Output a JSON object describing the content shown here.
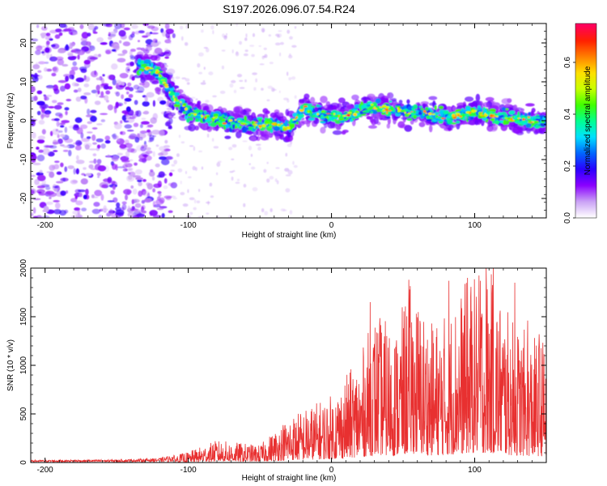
{
  "title": "S197.2026.096.07.54.R24",
  "chart_data": [
    {
      "type": "heatmap",
      "xlabel": "Height of straight line (km)",
      "ylabel": "Frequency (Hz)",
      "xlim": [
        -210,
        150
      ],
      "ylim": [
        -25,
        25
      ],
      "xticks": [
        -200,
        -100,
        0,
        100
      ],
      "yticks": [
        20,
        10,
        0,
        -10,
        -20
      ],
      "colorbar": {
        "label": "Normalized spectral amplitude",
        "range": [
          0,
          0.75
        ],
        "ticks": [
          "0.0",
          "0.2",
          "0.4",
          "0.6"
        ],
        "tick_values": [
          0,
          0.2,
          0.4,
          0.6
        ],
        "colors": [
          "#ffffff",
          "#c9a0f5",
          "#8a00ff",
          "#2a00ff",
          "#0066ff",
          "#00e0ff",
          "#00ff90",
          "#40ff00",
          "#c8ff00",
          "#ffe000",
          "#ff8000",
          "#ff2000",
          "#ff0060"
        ]
      },
      "ridge_frequency_hz": [
        {
          "x": -130,
          "y": 14
        },
        {
          "x": -120,
          "y": 12
        },
        {
          "x": -110,
          "y": 6
        },
        {
          "x": -100,
          "y": 2
        },
        {
          "x": -80,
          "y": 0
        },
        {
          "x": -60,
          "y": -1
        },
        {
          "x": -40,
          "y": -1
        },
        {
          "x": -30,
          "y": -2
        },
        {
          "x": -20,
          "y": 3
        },
        {
          "x": 0,
          "y": 1
        },
        {
          "x": 10,
          "y": 1
        },
        {
          "x": 20,
          "y": 3
        },
        {
          "x": 40,
          "y": 3
        },
        {
          "x": 60,
          "y": 2
        },
        {
          "x": 80,
          "y": 1
        },
        {
          "x": 100,
          "y": 2
        },
        {
          "x": 120,
          "y": 1
        },
        {
          "x": 140,
          "y": 0
        }
      ]
    },
    {
      "type": "line",
      "xlabel": "Height of straight line (km)",
      "ylabel": "SNR (10 * v/v)",
      "xlim": [
        -210,
        150
      ],
      "ylim": [
        0,
        2000
      ],
      "xticks": [
        -200,
        -100,
        0,
        100
      ],
      "yticks": [
        0,
        500,
        1000,
        1500,
        2000
      ],
      "color": "#e83030",
      "envelope": [
        {
          "x": -210,
          "y": 20
        },
        {
          "x": -150,
          "y": 25
        },
        {
          "x": -120,
          "y": 40
        },
        {
          "x": -100,
          "y": 110
        },
        {
          "x": -80,
          "y": 230
        },
        {
          "x": -50,
          "y": 180
        },
        {
          "x": -30,
          "y": 480
        },
        {
          "x": -20,
          "y": 550
        },
        {
          "x": 0,
          "y": 700
        },
        {
          "x": 20,
          "y": 1100
        },
        {
          "x": 30,
          "y": 1550
        },
        {
          "x": 45,
          "y": 1400
        },
        {
          "x": 55,
          "y": 1850
        },
        {
          "x": 70,
          "y": 1450
        },
        {
          "x": 80,
          "y": 1550
        },
        {
          "x": 95,
          "y": 1900
        },
        {
          "x": 110,
          "y": 2000
        },
        {
          "x": 125,
          "y": 1500
        },
        {
          "x": 140,
          "y": 1300
        },
        {
          "x": 150,
          "y": 1300
        }
      ],
      "spikes": [
        {
          "x": 27,
          "y": 1650
        },
        {
          "x": 54,
          "y": 1880
        },
        {
          "x": 82,
          "y": 1870
        },
        {
          "x": 95,
          "y": 1900
        },
        {
          "x": 104,
          "y": 1870
        },
        {
          "x": 108,
          "y": 2000
        },
        {
          "x": 113,
          "y": 2000
        },
        {
          "x": 128,
          "y": 1850
        },
        {
          "x": 137,
          "y": 1460
        },
        {
          "x": 145,
          "y": 1320
        }
      ]
    }
  ]
}
